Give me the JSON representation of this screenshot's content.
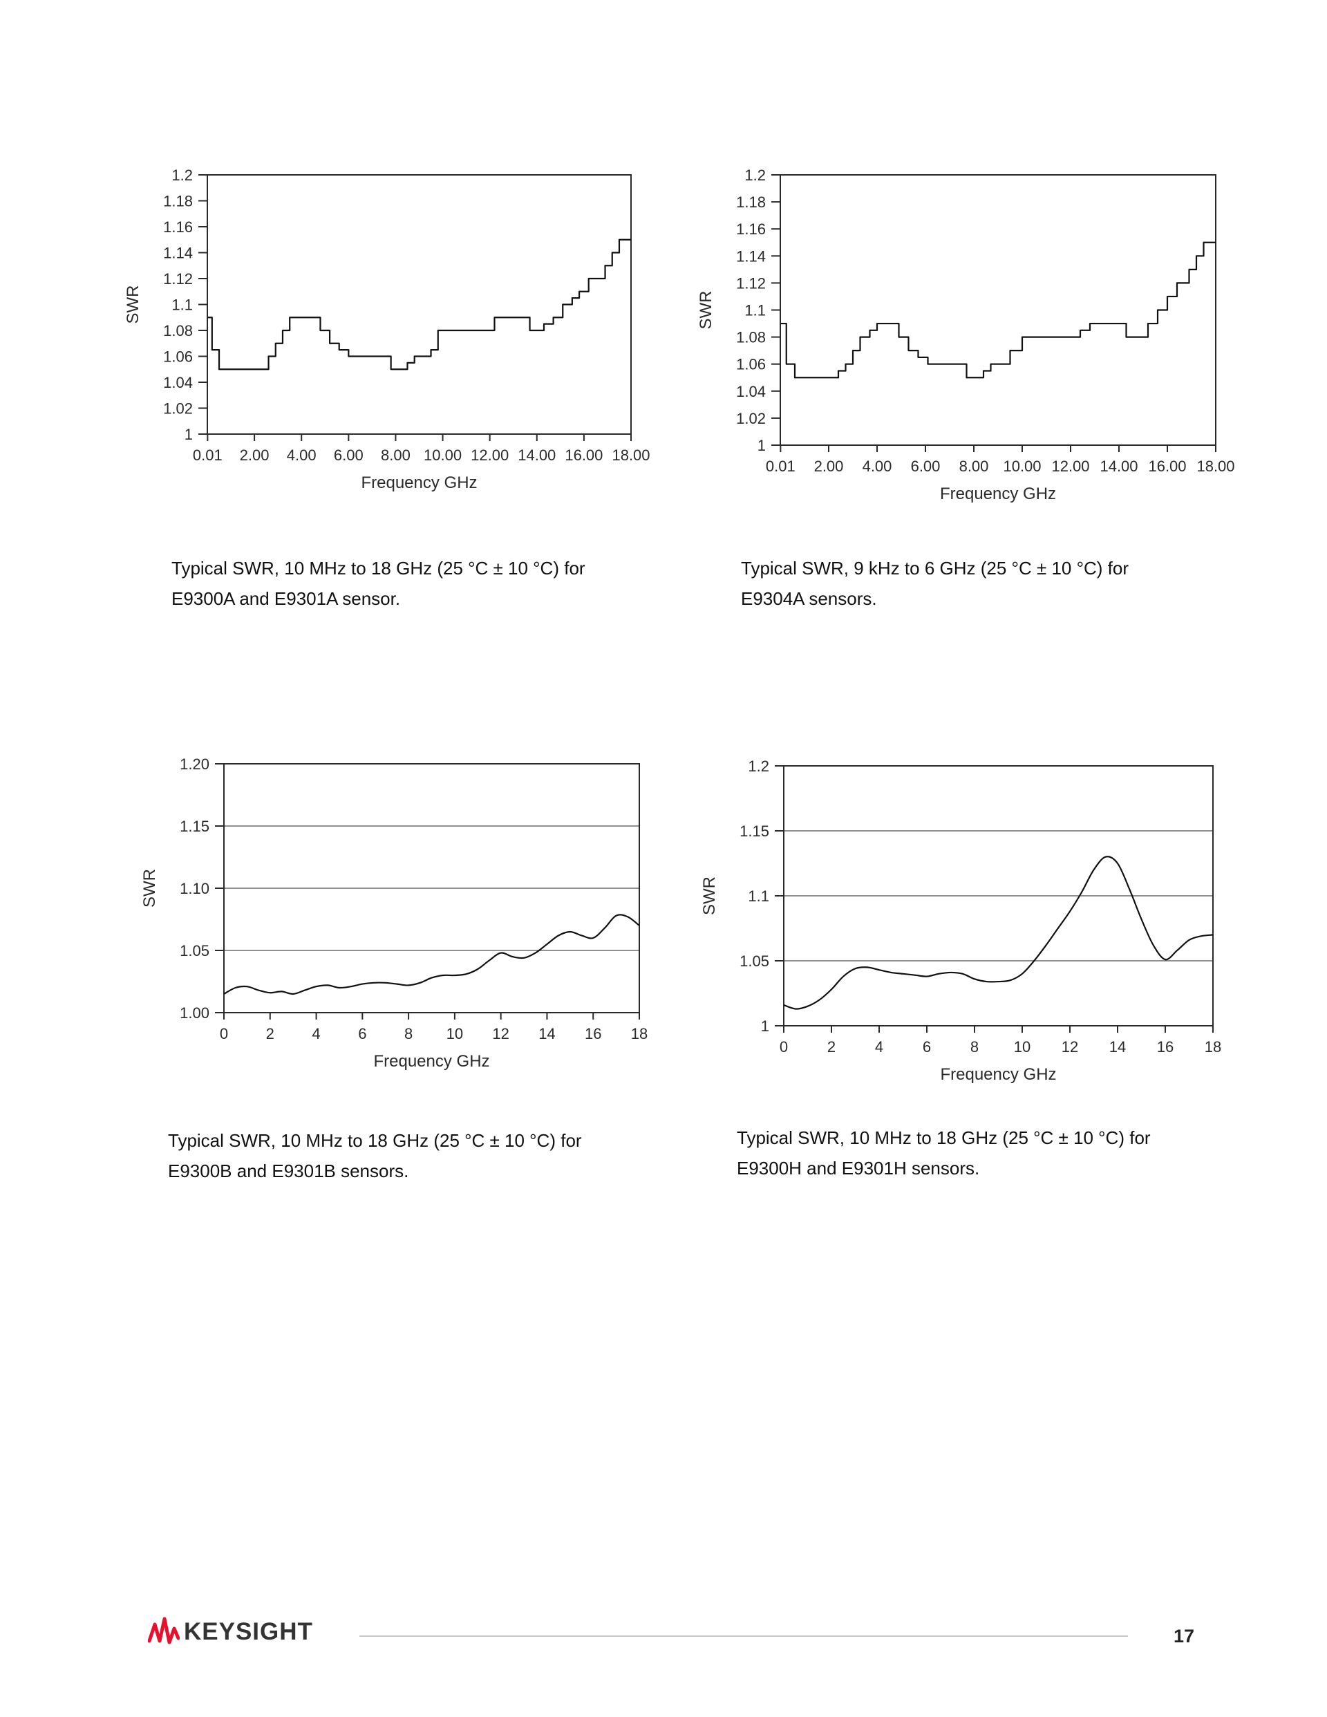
{
  "page": {
    "number": "17",
    "brand": "KEYSIGHT"
  },
  "chart_data": [
    {
      "id": "swr-e9300a-e9301a",
      "type": "line",
      "style": "step",
      "ylabel": "SWR",
      "xlabel": "Frequency GHz",
      "xlim": [
        0,
        18
      ],
      "ylim": [
        1,
        1.2
      ],
      "grid": false,
      "x_ticks": [
        [
          0.01,
          "0.01"
        ],
        [
          2,
          "2.00"
        ],
        [
          4,
          "4.00"
        ],
        [
          6,
          "6.00"
        ],
        [
          8,
          "8.00"
        ],
        [
          10,
          "10.00"
        ],
        [
          12,
          "12.00"
        ],
        [
          14,
          "14.00"
        ],
        [
          16,
          "16.00"
        ],
        [
          18,
          "18.00"
        ]
      ],
      "y_ticks": [
        [
          1,
          "1"
        ],
        [
          1.02,
          "1.02"
        ],
        [
          1.04,
          "1.04"
        ],
        [
          1.06,
          "1.06"
        ],
        [
          1.08,
          "1.08"
        ],
        [
          1.1,
          "1.1"
        ],
        [
          1.12,
          "1.12"
        ],
        [
          1.14,
          "1.14"
        ],
        [
          1.16,
          "1.16"
        ],
        [
          1.18,
          "1.18"
        ],
        [
          1.2,
          "1.2"
        ]
      ],
      "points": [
        [
          0.01,
          1.09
        ],
        [
          0.2,
          1.065
        ],
        [
          0.5,
          1.05
        ],
        [
          2.6,
          1.06
        ],
        [
          2.9,
          1.07
        ],
        [
          3.2,
          1.08
        ],
        [
          3.5,
          1.09
        ],
        [
          4.8,
          1.08
        ],
        [
          5.2,
          1.07
        ],
        [
          5.6,
          1.065
        ],
        [
          6.0,
          1.06
        ],
        [
          7.8,
          1.05
        ],
        [
          8.5,
          1.055
        ],
        [
          8.8,
          1.06
        ],
        [
          9.5,
          1.065
        ],
        [
          9.8,
          1.08
        ],
        [
          12.2,
          1.09
        ],
        [
          13.7,
          1.08
        ],
        [
          14.3,
          1.085
        ],
        [
          14.7,
          1.09
        ],
        [
          15.1,
          1.1
        ],
        [
          15.5,
          1.105
        ],
        [
          15.8,
          1.11
        ],
        [
          16.2,
          1.12
        ],
        [
          16.9,
          1.13
        ],
        [
          17.2,
          1.14
        ],
        [
          17.5,
          1.15
        ]
      ],
      "caption1": "Typical SWR, 10 MHz to 18 GHz (25 °C ± 10 °C) for",
      "caption2": "E9300A and E9301A sensor."
    },
    {
      "id": "swr-e9304a",
      "type": "line",
      "style": "step",
      "ylabel": "SWR",
      "xlabel": "Frequency GHz",
      "xlim": [
        0,
        18
      ],
      "ylim": [
        1,
        1.2
      ],
      "grid": false,
      "x_ticks": [
        [
          0.01,
          "0.01"
        ],
        [
          2,
          "2.00"
        ],
        [
          4,
          "4.00"
        ],
        [
          6,
          "6.00"
        ],
        [
          8,
          "8.00"
        ],
        [
          10,
          "10.00"
        ],
        [
          12,
          "12.00"
        ],
        [
          14,
          "14.00"
        ],
        [
          16,
          "16.00"
        ],
        [
          18,
          "18.00"
        ]
      ],
      "y_ticks": [
        [
          1,
          "1"
        ],
        [
          1.02,
          "1.02"
        ],
        [
          1.04,
          "1.04"
        ],
        [
          1.06,
          "1.06"
        ],
        [
          1.08,
          "1.08"
        ],
        [
          1.1,
          "1.1"
        ],
        [
          1.12,
          "1.12"
        ],
        [
          1.14,
          "1.14"
        ],
        [
          1.16,
          "1.16"
        ],
        [
          1.18,
          "1.18"
        ],
        [
          1.2,
          "1.2"
        ]
      ],
      "points": [
        [
          0.01,
          1.09
        ],
        [
          0.25,
          1.06
        ],
        [
          0.6,
          1.05
        ],
        [
          2.4,
          1.055
        ],
        [
          2.7,
          1.06
        ],
        [
          3.0,
          1.07
        ],
        [
          3.3,
          1.08
        ],
        [
          3.7,
          1.085
        ],
        [
          4.0,
          1.09
        ],
        [
          4.9,
          1.08
        ],
        [
          5.3,
          1.07
        ],
        [
          5.7,
          1.065
        ],
        [
          6.1,
          1.06
        ],
        [
          7.7,
          1.05
        ],
        [
          8.4,
          1.055
        ],
        [
          8.7,
          1.06
        ],
        [
          9.5,
          1.07
        ],
        [
          10.0,
          1.08
        ],
        [
          12.4,
          1.085
        ],
        [
          12.8,
          1.09
        ],
        [
          14.3,
          1.08
        ],
        [
          15.2,
          1.09
        ],
        [
          15.6,
          1.1
        ],
        [
          16.0,
          1.11
        ],
        [
          16.4,
          1.12
        ],
        [
          16.9,
          1.13
        ],
        [
          17.2,
          1.14
        ],
        [
          17.5,
          1.15
        ]
      ],
      "caption1": "Typical SWR, 9 kHz to 6 GHz (25 °C ± 10 °C) for",
      "caption2": "E9304A sensors."
    },
    {
      "id": "swr-e9300b-e9301b",
      "type": "line",
      "style": "smooth",
      "ylabel": "SWR",
      "xlabel": "Frequency GHz",
      "xlim": [
        0,
        18
      ],
      "ylim": [
        1,
        1.2
      ],
      "grid": true,
      "x_ticks": [
        [
          0,
          "0"
        ],
        [
          2,
          "2"
        ],
        [
          4,
          "4"
        ],
        [
          6,
          "6"
        ],
        [
          8,
          "8"
        ],
        [
          10,
          "10"
        ],
        [
          12,
          "12"
        ],
        [
          14,
          "14"
        ],
        [
          16,
          "16"
        ],
        [
          18,
          "18"
        ]
      ],
      "y_ticks": [
        [
          1,
          "1.00"
        ],
        [
          1.05,
          "1.05"
        ],
        [
          1.1,
          "1.10"
        ],
        [
          1.15,
          "1.15"
        ],
        [
          1.2,
          "1.20"
        ]
      ],
      "points": [
        [
          0,
          1.015
        ],
        [
          0.5,
          1.02
        ],
        [
          1,
          1.021
        ],
        [
          1.5,
          1.018
        ],
        [
          2,
          1.016
        ],
        [
          2.5,
          1.017
        ],
        [
          3,
          1.015
        ],
        [
          3.5,
          1.018
        ],
        [
          4,
          1.021
        ],
        [
          4.5,
          1.022
        ],
        [
          5,
          1.02
        ],
        [
          5.5,
          1.021
        ],
        [
          6,
          1.023
        ],
        [
          6.5,
          1.024
        ],
        [
          7,
          1.024
        ],
        [
          7.5,
          1.023
        ],
        [
          8,
          1.022
        ],
        [
          8.5,
          1.024
        ],
        [
          9,
          1.028
        ],
        [
          9.5,
          1.03
        ],
        [
          10,
          1.03
        ],
        [
          10.5,
          1.031
        ],
        [
          11,
          1.035
        ],
        [
          11.5,
          1.042
        ],
        [
          12,
          1.048
        ],
        [
          12.5,
          1.045
        ],
        [
          13,
          1.044
        ],
        [
          13.5,
          1.048
        ],
        [
          14,
          1.055
        ],
        [
          14.5,
          1.062
        ],
        [
          15,
          1.065
        ],
        [
          15.5,
          1.062
        ],
        [
          16,
          1.06
        ],
        [
          16.5,
          1.068
        ],
        [
          17,
          1.078
        ],
        [
          17.5,
          1.077
        ],
        [
          18,
          1.07
        ]
      ],
      "caption1": "Typical SWR, 10 MHz to 18 GHz (25 °C ± 10 °C) for",
      "caption2": "E9300B and E9301B sensors."
    },
    {
      "id": "swr-e9300h-e9301h",
      "type": "line",
      "style": "smooth",
      "ylabel": "SWR",
      "xlabel": "Frequency GHz",
      "xlim": [
        0,
        18
      ],
      "ylim": [
        1,
        1.2
      ],
      "grid": true,
      "x_ticks": [
        [
          0,
          "0"
        ],
        [
          2,
          "2"
        ],
        [
          4,
          "4"
        ],
        [
          6,
          "6"
        ],
        [
          8,
          "8"
        ],
        [
          10,
          "10"
        ],
        [
          12,
          "12"
        ],
        [
          14,
          "14"
        ],
        [
          16,
          "16"
        ],
        [
          18,
          "18"
        ]
      ],
      "y_ticks": [
        [
          1,
          "1"
        ],
        [
          1.05,
          "1.05"
        ],
        [
          1.1,
          "1.1"
        ],
        [
          1.15,
          "1.15"
        ],
        [
          1.2,
          "1.2"
        ]
      ],
      "points": [
        [
          0,
          1.016
        ],
        [
          0.5,
          1.013
        ],
        [
          1,
          1.015
        ],
        [
          1.5,
          1.02
        ],
        [
          2,
          1.028
        ],
        [
          2.5,
          1.038
        ],
        [
          3,
          1.044
        ],
        [
          3.5,
          1.045
        ],
        [
          4,
          1.043
        ],
        [
          4.5,
          1.041
        ],
        [
          5,
          1.04
        ],
        [
          5.5,
          1.039
        ],
        [
          6,
          1.038
        ],
        [
          6.5,
          1.04
        ],
        [
          7,
          1.041
        ],
        [
          7.5,
          1.04
        ],
        [
          8,
          1.036
        ],
        [
          8.5,
          1.034
        ],
        [
          9,
          1.034
        ],
        [
          9.5,
          1.035
        ],
        [
          10,
          1.04
        ],
        [
          10.5,
          1.05
        ],
        [
          11,
          1.062
        ],
        [
          11.5,
          1.075
        ],
        [
          12,
          1.088
        ],
        [
          12.5,
          1.103
        ],
        [
          13,
          1.12
        ],
        [
          13.5,
          1.13
        ],
        [
          14,
          1.125
        ],
        [
          14.5,
          1.105
        ],
        [
          15,
          1.082
        ],
        [
          15.5,
          1.062
        ],
        [
          16,
          1.051
        ],
        [
          16.5,
          1.058
        ],
        [
          17,
          1.066
        ],
        [
          17.5,
          1.069
        ],
        [
          18,
          1.07
        ]
      ],
      "caption1": "Typical SWR, 10 MHz to 18 GHz (25 °C ± 10 °C) for",
      "caption2": "E9300H and E9301H sensors."
    }
  ]
}
